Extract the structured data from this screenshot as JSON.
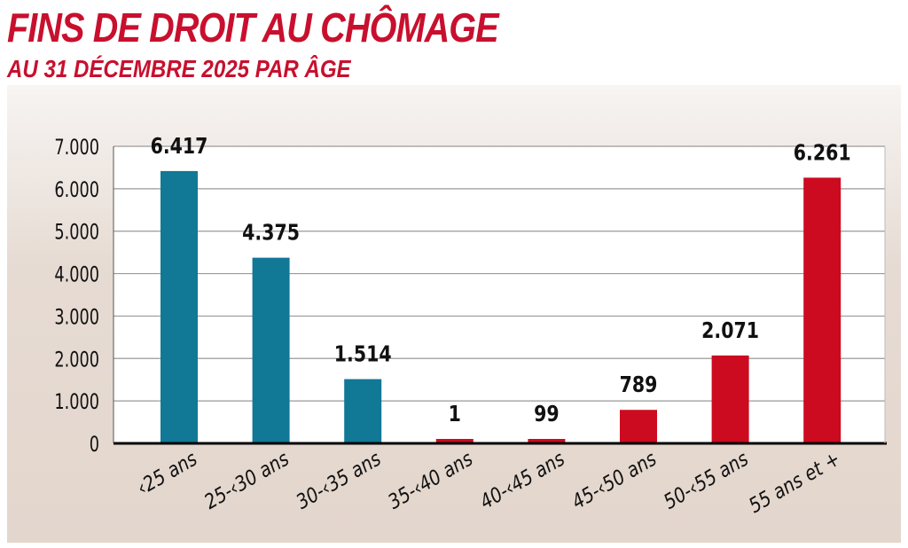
{
  "chart_data": {
    "type": "bar",
    "title": "FINS DE DROIT AU CHÔMAGE",
    "subtitle": "AU 31 DÉCEMBRE 2025 PAR ÂGE",
    "categories": [
      "‹25 ans",
      "25-‹30 ans",
      "30-‹35 ans",
      "35-‹40 ans",
      "40-‹45 ans",
      "45-‹50 ans",
      "50-‹55 ans",
      "55 ans et +"
    ],
    "values": [
      6417,
      4375,
      1514,
      1,
      99,
      789,
      2071,
      6261
    ],
    "data_labels": [
      "6.417",
      "4.375",
      "1.514",
      "1",
      "99",
      "789",
      "2.071",
      "6.261"
    ],
    "bar_colors": [
      "#117896",
      "#117896",
      "#117896",
      "#cc0a20",
      "#cc0a20",
      "#cc0a20",
      "#cc0a20",
      "#cc0a20"
    ],
    "yticks": [
      0,
      1000,
      2000,
      3000,
      4000,
      5000,
      6000,
      7000
    ],
    "ytick_labels": [
      "0",
      "1.000",
      "2.000",
      "3.000",
      "4.000",
      "5.000",
      "6.000",
      "7.000"
    ],
    "ylim": [
      0,
      7000
    ],
    "grid": true,
    "xlabel": "",
    "ylabel": ""
  }
}
